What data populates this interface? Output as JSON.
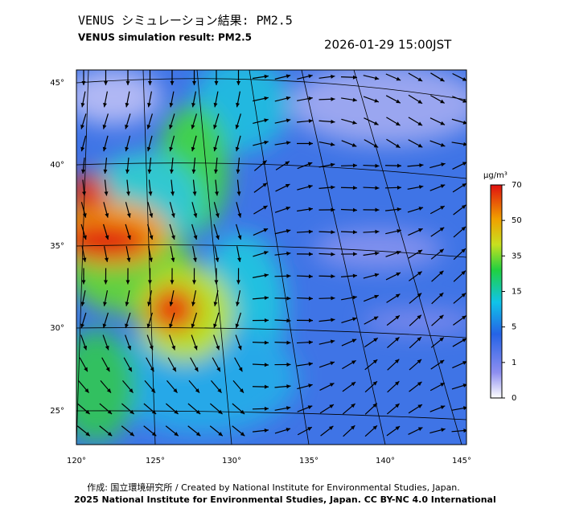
{
  "header": {
    "title_jp": "VENUS シミュレーション結果: PM2.5",
    "title_en": "VENUS simulation result: PM2.5",
    "timestamp": "2026-01-29 15:00JST"
  },
  "map": {
    "lat_labels": [
      "45°",
      "40°",
      "35°",
      "30°",
      "25°"
    ],
    "lon_labels": [
      "120°",
      "125°",
      "130°",
      "135°",
      "140°",
      "145°"
    ]
  },
  "colorbar": {
    "unit": "μg/m³",
    "ticks": [
      "70",
      "50",
      "35",
      "15",
      "5",
      "1",
      "0"
    ]
  },
  "footer": {
    "credit": "作成: 国立環境研究所 / Created by National Institute for Environmental Studies, Japan.",
    "copyright": "2025 National Institute for Environmental Studies, Japan. CC BY-NC 4.0 International"
  }
}
